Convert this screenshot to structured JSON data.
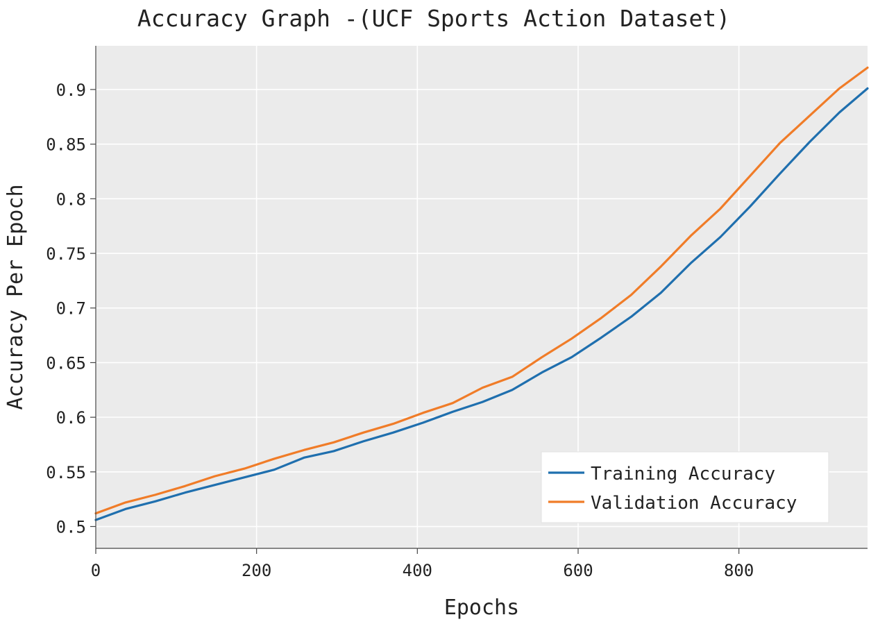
{
  "chart_data": {
    "type": "line",
    "title": "Accuracy Graph -(UCF Sports Action Dataset)",
    "xlabel": "Epochs",
    "ylabel": "Accuracy Per Epoch",
    "xlim": [
      0,
      960
    ],
    "ylim": [
      0.48,
      0.94
    ],
    "xticks": [
      0,
      200,
      400,
      600,
      800
    ],
    "xtick_labels": [
      "0",
      "200",
      "400",
      "600",
      "800"
    ],
    "yticks": [
      0.5,
      0.55,
      0.6,
      0.65,
      0.7,
      0.75,
      0.8,
      0.85,
      0.9
    ],
    "ytick_labels": [
      "0.5",
      "0.55",
      "0.6",
      "0.65",
      "0.7",
      "0.75",
      "0.8",
      "0.85",
      "0.9"
    ],
    "grid": true,
    "legend_position": "bottom-right",
    "x": [
      0,
      37,
      74,
      111,
      148,
      185,
      222,
      259,
      296,
      333,
      370,
      407,
      444,
      481,
      518,
      555,
      592,
      629,
      666,
      703,
      740,
      777,
      814,
      851,
      888,
      925,
      960
    ],
    "series": [
      {
        "name": "Training Accuracy",
        "color": "#1f6fae",
        "values": [
          0.506,
          0.516,
          0.523,
          0.531,
          0.538,
          0.545,
          0.552,
          0.563,
          0.569,
          0.578,
          0.586,
          0.595,
          0.605,
          0.614,
          0.625,
          0.641,
          0.655,
          0.673,
          0.692,
          0.714,
          0.741,
          0.765,
          0.793,
          0.823,
          0.852,
          0.879,
          0.901
        ]
      },
      {
        "name": "Validation Accuracy",
        "color": "#f07c28",
        "values": [
          0.512,
          0.522,
          0.529,
          0.537,
          0.546,
          0.553,
          0.562,
          0.57,
          0.577,
          0.586,
          0.594,
          0.604,
          0.613,
          0.627,
          0.637,
          0.655,
          0.672,
          0.691,
          0.712,
          0.738,
          0.766,
          0.791,
          0.821,
          0.851,
          0.876,
          0.901,
          0.92
        ]
      }
    ]
  }
}
